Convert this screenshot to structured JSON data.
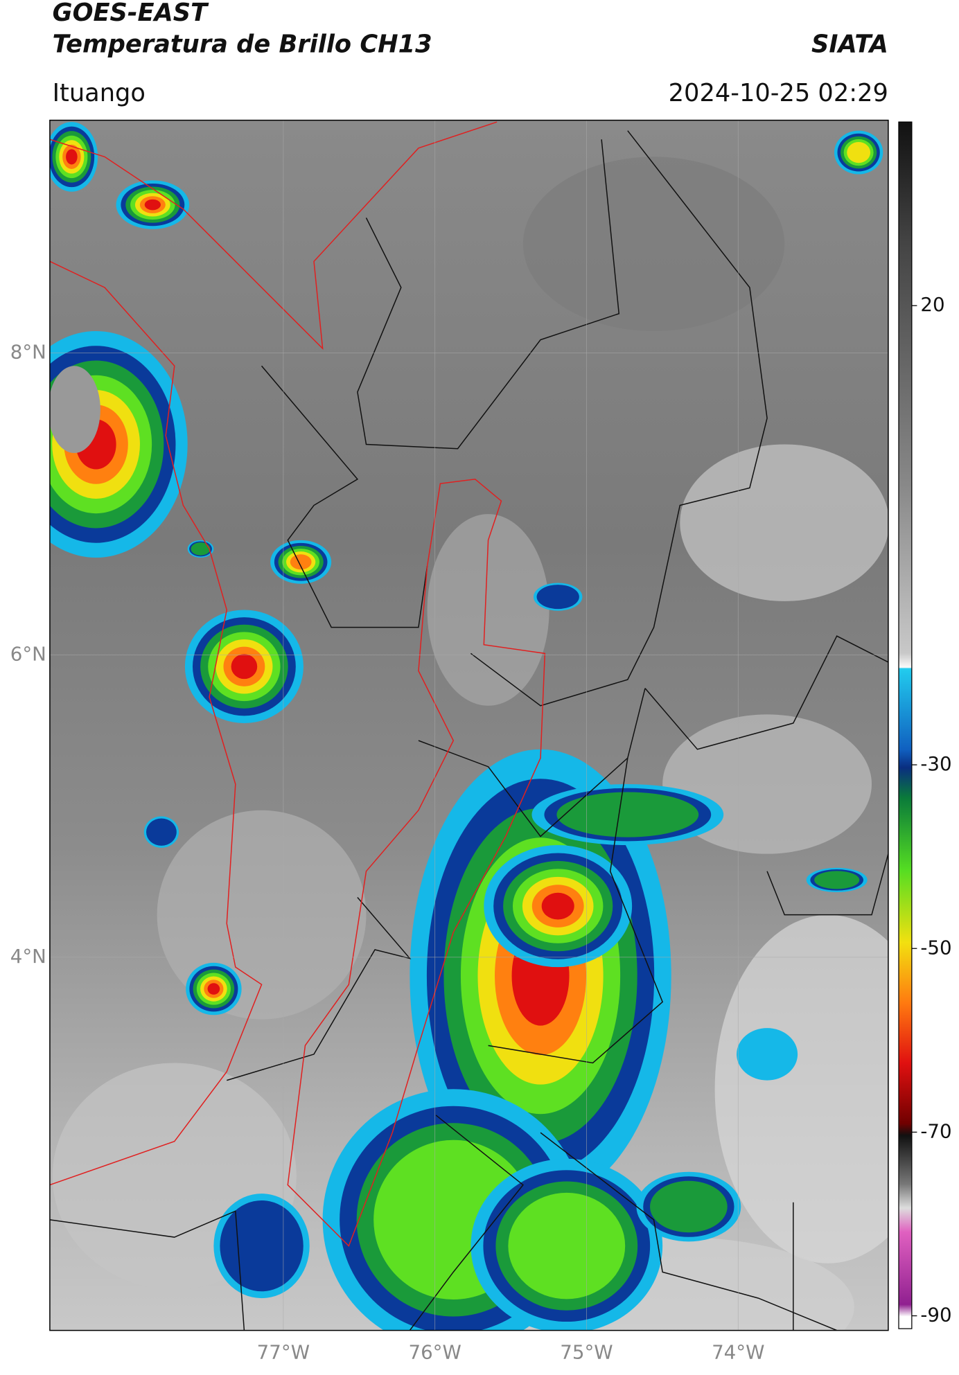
{
  "header": {
    "title": "GOES-EAST",
    "subtitle": "Temperatura de Brillo CH13",
    "source": "SIATA",
    "location": "Ituango",
    "datetime": "2024-10-25 02:29"
  },
  "map": {
    "lat_range": [
      1.53,
      9.54
    ],
    "lon_range": [
      -78.54,
      -73.01
    ],
    "lat_ticks": [
      {
        "value": 8,
        "label": "8°N"
      },
      {
        "value": 6,
        "label": "6°N"
      },
      {
        "value": 4,
        "label": "4°N"
      }
    ],
    "lon_ticks": [
      {
        "value": -77,
        "label": "77°W"
      },
      {
        "value": -76,
        "label": "76°W"
      },
      {
        "value": -75,
        "label": "75°W"
      },
      {
        "value": -74,
        "label": "74°W"
      }
    ]
  },
  "colorbar": {
    "lim": [
      -91.4,
      40
    ],
    "ticks": [
      20,
      -30,
      -50,
      -70,
      -90
    ]
  }
}
